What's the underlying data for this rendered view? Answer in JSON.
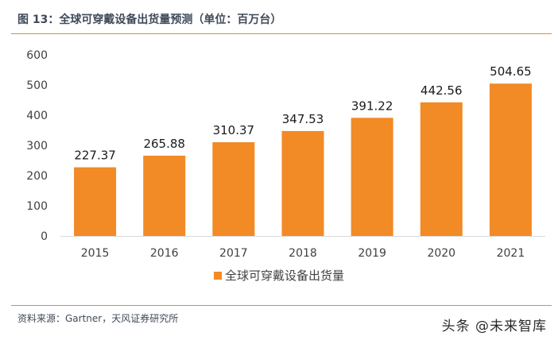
{
  "figure": {
    "title": "图 13：全球可穿戴设备出货量预测（单位：百万台）",
    "source": "资料来源：Gartner，天风证券研究所",
    "watermark": "头条 @未来智库"
  },
  "colors": {
    "bar": "#f28a25",
    "axis_text": "#404040",
    "rule": "#e58a3a"
  },
  "chart_data": {
    "type": "bar",
    "categories": [
      "2015",
      "2016",
      "2017",
      "2018",
      "2019",
      "2020",
      "2021"
    ],
    "series": [
      {
        "name": "全球可穿戴设备出货量",
        "values": [
          227.37,
          265.88,
          310.37,
          347.53,
          391.22,
          442.56,
          504.65
        ]
      }
    ],
    "value_labels": [
      "227.37",
      "265.88",
      "310.37",
      "347.53",
      "391.22",
      "442.56",
      "504.65"
    ],
    "ylim": [
      0,
      600
    ],
    "yticks": [
      "0",
      "100",
      "200",
      "300",
      "400",
      "500",
      "600"
    ],
    "grid": false,
    "legend_position": "bottom"
  }
}
